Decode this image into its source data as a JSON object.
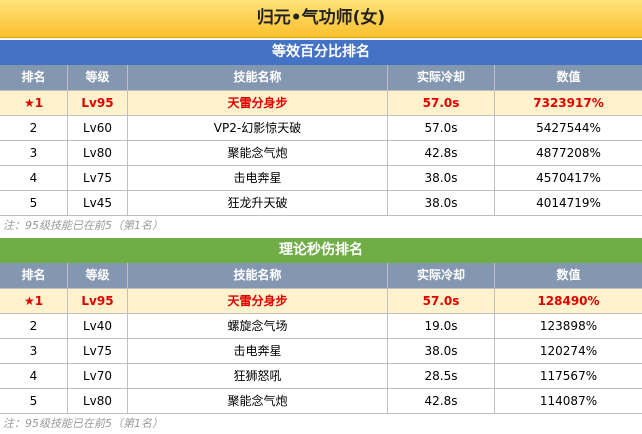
{
  "header": {
    "title": "归元•气功师(女)"
  },
  "sections": [
    {
      "title": "等效百分比排名",
      "columns": [
        "排名",
        "等级",
        "技能名称",
        "实际冷却",
        "数值"
      ],
      "rows": [
        [
          "★1",
          "Lv95",
          "天雷分身步",
          "57.0s",
          "7323917%"
        ],
        [
          "2",
          "Lv60",
          "VP2-幻影惊天破",
          "57.0s",
          "5427544%"
        ],
        [
          "3",
          "Lv80",
          "聚能念气炮",
          "42.8s",
          "4877208%"
        ],
        [
          "4",
          "Lv75",
          "击电奔星",
          "38.0s",
          "4570417%"
        ],
        [
          "5",
          "Lv45",
          "狂龙升天破",
          "38.0s",
          "4014719%"
        ]
      ],
      "note": "注：95级技能已在前5（第1名）"
    },
    {
      "title": "理论秒伤排名",
      "columns": [
        "排名",
        "等级",
        "技能名称",
        "实际冷却",
        "数值"
      ],
      "rows": [
        [
          "★1",
          "Lv95",
          "天雷分身步",
          "57.0s",
          "128490%"
        ],
        [
          "2",
          "Lv40",
          "螺旋念气场",
          "19.0s",
          "123898%"
        ],
        [
          "3",
          "Lv75",
          "击电奔星",
          "38.0s",
          "120274%"
        ],
        [
          "4",
          "Lv70",
          "狂狮怒吼",
          "28.5s",
          "117567%"
        ],
        [
          "5",
          "Lv80",
          "聚能念气炮",
          "42.8s",
          "114087%"
        ]
      ],
      "note": "注：95级技能已在前5（第1名）"
    }
  ]
}
